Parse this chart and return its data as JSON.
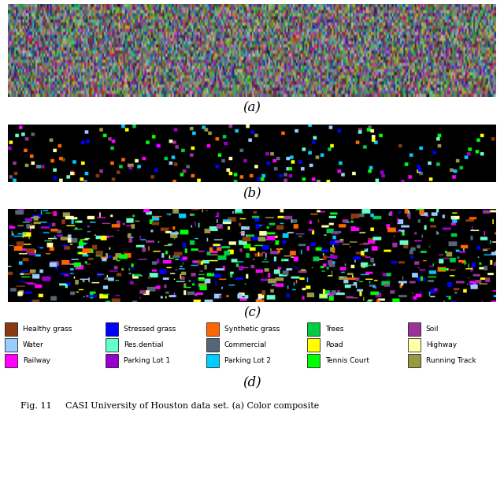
{
  "fig_width": 6.4,
  "fig_height": 6.14,
  "dpi": 100,
  "panels": [
    "a",
    "b",
    "c",
    "d"
  ],
  "panel_labels": [
    "(a)",
    "(b)",
    "(c)",
    "(d)"
  ],
  "legend_items": [
    {
      "label": "Healthy grass",
      "color": "#8B3A10"
    },
    {
      "label": "Stressed grass",
      "color": "#0000FF"
    },
    {
      "label": "Synthetic grass",
      "color": "#FF6600"
    },
    {
      "label": "Trees",
      "color": "#00CC44"
    },
    {
      "label": "Soil",
      "color": "#993399"
    },
    {
      "label": "Water",
      "color": "#99CCFF"
    },
    {
      "label": "Res.dential",
      "color": "#66FFCC"
    },
    {
      "label": "Commercial",
      "color": "#556677"
    },
    {
      "label": "Road",
      "color": "#FFFF00"
    },
    {
      "label": "Highway",
      "color": "#FFFFAA"
    },
    {
      "label": "Railway",
      "color": "#FF00FF"
    },
    {
      "label": "Parking Lot 1",
      "color": "#9900CC"
    },
    {
      "label": "Parking Lot 2",
      "color": "#00CCFF"
    },
    {
      "label": "Tennis Court",
      "color": "#00FF00"
    },
    {
      "label": "Running Track",
      "color": "#999944"
    }
  ],
  "caption": "Fig. 11     CASI University of Houston data set. (a) Color composite",
  "background_color": "#FFFFFF"
}
